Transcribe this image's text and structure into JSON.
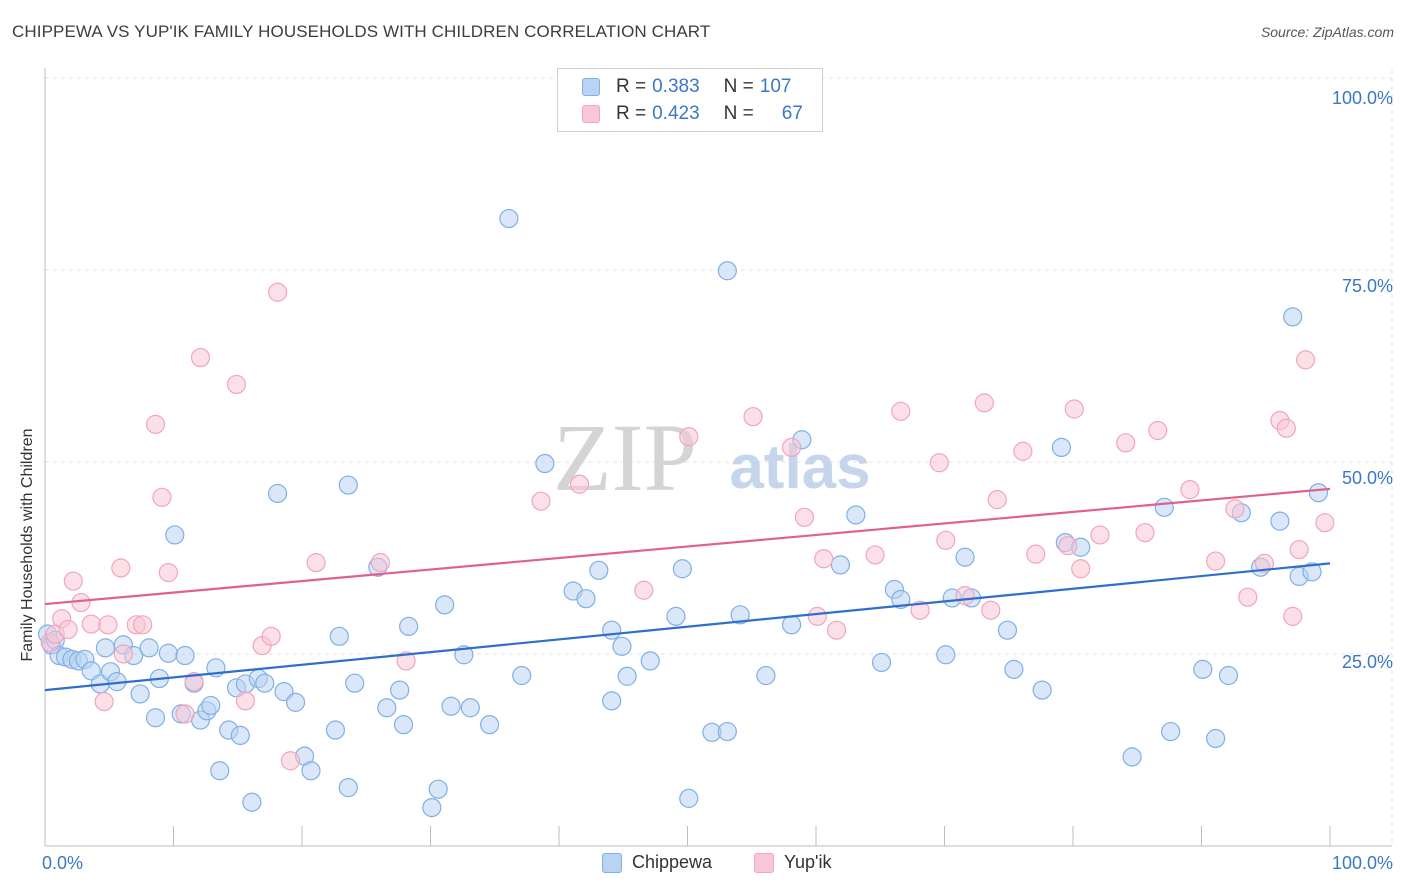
{
  "title": "CHIPPEWA VS YUP'IK FAMILY HOUSEHOLDS WITH CHILDREN CORRELATION CHART",
  "source": "Source: ZipAtlas.com",
  "watermark": {
    "zip": "ZIP",
    "atlas": "atlas"
  },
  "legend": {
    "rows": [
      {
        "r_label": "R = ",
        "r_value": "0.383",
        "n_label": "N = ",
        "n_value": "107"
      },
      {
        "r_label": "R = ",
        "r_value": "0.423",
        "n_label": "N = ",
        "n_value": "67"
      }
    ]
  },
  "chart_data": {
    "type": "scatter",
    "title": "CHIPPEWA VS YUP'IK FAMILY HOUSEHOLDS WITH CHILDREN CORRELATION CHART",
    "xlabel": "",
    "ylabel": "Family Households with Children",
    "xlim": [
      0,
      100
    ],
    "ylim": [
      0,
      100
    ],
    "x_tick_labels": [
      "0.0%",
      "100.0%"
    ],
    "y_tick_labels": [
      "25.0%",
      "50.0%",
      "75.0%",
      "100.0%"
    ],
    "y_tick_values": [
      25,
      50,
      75,
      100
    ],
    "grid": true,
    "series": [
      {
        "name": "Chippewa",
        "color": "#7fb0e6",
        "fill": "#b9d3f2",
        "line_color": "#2e6fce",
        "trend": {
          "x0": 0,
          "y0": 20.3,
          "x1": 100,
          "y1": 36.8
        },
        "points": [
          [
            0.2,
            27.6
          ],
          [
            0.5,
            26.2
          ],
          [
            0.8,
            26.8
          ],
          [
            1.1,
            24.8
          ],
          [
            1.6,
            24.6
          ],
          [
            2.1,
            24.3
          ],
          [
            2.6,
            24.1
          ],
          [
            3.1,
            24.3
          ],
          [
            3.6,
            22.8
          ],
          [
            4.3,
            21.1
          ],
          [
            4.7,
            25.8
          ],
          [
            5.1,
            22.7
          ],
          [
            5.6,
            21.4
          ],
          [
            6.1,
            26.2
          ],
          [
            6.9,
            24.8
          ],
          [
            7.4,
            19.8
          ],
          [
            8.1,
            25.8
          ],
          [
            8.6,
            16.7
          ],
          [
            8.9,
            21.8
          ],
          [
            9.6,
            25.1
          ],
          [
            10.1,
            40.5
          ],
          [
            10.6,
            17.2
          ],
          [
            10.9,
            24.8
          ],
          [
            11.6,
            21.2
          ],
          [
            12.1,
            16.4
          ],
          [
            12.6,
            17.6
          ],
          [
            12.9,
            18.3
          ],
          [
            13.3,
            23.2
          ],
          [
            13.6,
            9.8
          ],
          [
            14.3,
            15.1
          ],
          [
            14.9,
            20.6
          ],
          [
            15.2,
            14.4
          ],
          [
            15.6,
            21.1
          ],
          [
            16.1,
            5.7
          ],
          [
            16.6,
            21.8
          ],
          [
            17.1,
            21.2
          ],
          [
            18.1,
            45.9
          ],
          [
            18.6,
            20.1
          ],
          [
            19.5,
            18.7
          ],
          [
            20.2,
            11.7
          ],
          [
            20.7,
            9.8
          ],
          [
            22.6,
            15.1
          ],
          [
            22.9,
            27.3
          ],
          [
            23.6,
            7.6
          ],
          [
            23.6,
            47.0
          ],
          [
            24.1,
            21.2
          ],
          [
            25.9,
            36.3
          ],
          [
            26.6,
            18.0
          ],
          [
            27.6,
            20.3
          ],
          [
            27.9,
            15.8
          ],
          [
            28.3,
            28.6
          ],
          [
            30.1,
            5.0
          ],
          [
            30.6,
            7.4
          ],
          [
            31.1,
            31.4
          ],
          [
            31.6,
            18.2
          ],
          [
            32.6,
            24.9
          ],
          [
            33.1,
            18.0
          ],
          [
            34.6,
            15.8
          ],
          [
            36.1,
            81.7
          ],
          [
            37.1,
            22.2
          ],
          [
            38.9,
            49.8
          ],
          [
            41.1,
            33.2
          ],
          [
            42.1,
            32.2
          ],
          [
            43.1,
            35.9
          ],
          [
            44.1,
            28.1
          ],
          [
            44.1,
            18.9
          ],
          [
            44.9,
            26.0
          ],
          [
            45.3,
            22.1
          ],
          [
            47.1,
            24.1
          ],
          [
            49.1,
            29.9
          ],
          [
            49.6,
            36.1
          ],
          [
            50.1,
            6.2
          ],
          [
            51.9,
            14.8
          ],
          [
            53.1,
            14.9
          ],
          [
            54.1,
            30.1
          ],
          [
            53.1,
            74.9
          ],
          [
            56.1,
            22.2
          ],
          [
            58.1,
            28.8
          ],
          [
            58.9,
            52.9
          ],
          [
            61.9,
            36.6
          ],
          [
            63.1,
            43.1
          ],
          [
            65.1,
            23.9
          ],
          [
            66.1,
            33.4
          ],
          [
            66.6,
            32.1
          ],
          [
            70.1,
            24.9
          ],
          [
            70.6,
            32.3
          ],
          [
            71.6,
            37.6
          ],
          [
            72.1,
            32.3
          ],
          [
            74.9,
            28.1
          ],
          [
            75.4,
            23.0
          ],
          [
            77.6,
            20.3
          ],
          [
            79.1,
            51.9
          ],
          [
            79.4,
            39.5
          ],
          [
            80.6,
            38.9
          ],
          [
            84.6,
            11.6
          ],
          [
            87.1,
            44.1
          ],
          [
            87.6,
            14.9
          ],
          [
            90.1,
            23.0
          ],
          [
            91.1,
            14.0
          ],
          [
            92.1,
            22.2
          ],
          [
            93.1,
            43.4
          ],
          [
            94.6,
            36.3
          ],
          [
            96.1,
            42.3
          ],
          [
            97.1,
            68.9
          ],
          [
            97.6,
            35.1
          ],
          [
            98.6,
            35.7
          ],
          [
            99.1,
            46.0
          ]
        ]
      },
      {
        "name": "Yup'ik",
        "color": "#f2a5bd",
        "fill": "#f7c7d6",
        "line_color": "#e0628c",
        "trend": {
          "x0": 0,
          "y0": 31.5,
          "x1": 100,
          "y1": 46.5
        },
        "points": [
          [
            0.4,
            26.5
          ],
          [
            0.8,
            27.6
          ],
          [
            1.3,
            29.6
          ],
          [
            1.8,
            28.2
          ],
          [
            2.2,
            34.5
          ],
          [
            2.8,
            31.7
          ],
          [
            3.6,
            28.9
          ],
          [
            4.6,
            18.8
          ],
          [
            4.9,
            28.8
          ],
          [
            5.9,
            36.2
          ],
          [
            6.1,
            25.0
          ],
          [
            7.1,
            28.8
          ],
          [
            7.6,
            28.8
          ],
          [
            8.6,
            54.9
          ],
          [
            9.1,
            45.4
          ],
          [
            9.6,
            35.6
          ],
          [
            10.9,
            17.2
          ],
          [
            11.6,
            21.4
          ],
          [
            12.1,
            63.6
          ],
          [
            14.9,
            60.1
          ],
          [
            15.6,
            18.9
          ],
          [
            16.9,
            26.1
          ],
          [
            17.6,
            27.3
          ],
          [
            18.1,
            72.1
          ],
          [
            19.1,
            11.1
          ],
          [
            21.1,
            36.9
          ],
          [
            26.1,
            36.9
          ],
          [
            28.1,
            24.1
          ],
          [
            38.6,
            44.9
          ],
          [
            41.6,
            47.1
          ],
          [
            46.6,
            33.3
          ],
          [
            50.1,
            53.3
          ],
          [
            55.1,
            55.9
          ],
          [
            58.1,
            51.9
          ],
          [
            59.1,
            42.8
          ],
          [
            60.1,
            29.9
          ],
          [
            60.6,
            37.4
          ],
          [
            61.6,
            28.1
          ],
          [
            64.6,
            37.9
          ],
          [
            66.6,
            56.6
          ],
          [
            68.1,
            30.7
          ],
          [
            69.6,
            49.9
          ],
          [
            70.1,
            39.8
          ],
          [
            71.6,
            32.6
          ],
          [
            73.1,
            57.7
          ],
          [
            73.6,
            30.7
          ],
          [
            74.1,
            45.1
          ],
          [
            76.1,
            51.4
          ],
          [
            77.1,
            38.0
          ],
          [
            79.6,
            39.1
          ],
          [
            80.1,
            56.9
          ],
          [
            80.6,
            36.1
          ],
          [
            82.1,
            40.5
          ],
          [
            84.1,
            52.5
          ],
          [
            85.6,
            40.8
          ],
          [
            86.6,
            54.1
          ],
          [
            89.1,
            46.4
          ],
          [
            91.1,
            37.1
          ],
          [
            92.6,
            43.9
          ],
          [
            93.6,
            32.4
          ],
          [
            94.9,
            36.8
          ],
          [
            96.1,
            55.4
          ],
          [
            96.6,
            54.4
          ],
          [
            97.1,
            29.9
          ],
          [
            97.6,
            38.6
          ],
          [
            98.1,
            63.3
          ],
          [
            99.6,
            42.1
          ]
        ]
      }
    ]
  }
}
